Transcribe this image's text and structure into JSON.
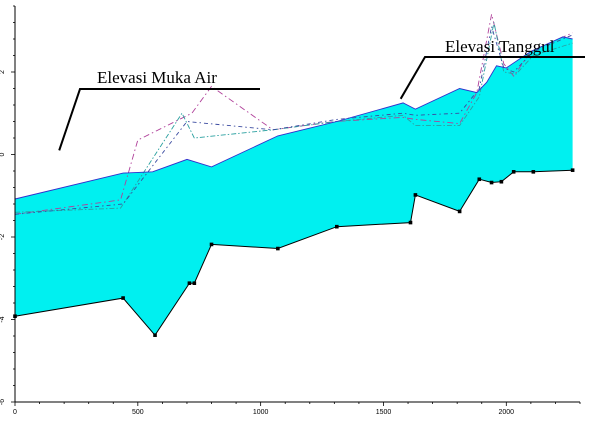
{
  "chart_data": {
    "type": "area",
    "title": "",
    "xlabel": "",
    "ylabel": "",
    "xlim": [
      0,
      2300
    ],
    "ylim": [
      -6,
      3.6
    ],
    "x_ticks": [
      0,
      500,
      1000,
      1500,
      2000
    ],
    "y_ticks": [
      -6,
      -4,
      -2,
      0,
      2
    ],
    "grid": false,
    "legend": "none",
    "colors": {
      "fill": "#00f0f0",
      "bed_line": "#000000",
      "embankment_line": "#3030cc",
      "dashdot_magenta": "#b0409a",
      "dashdot_teal": "#2aa0a0",
      "dashdot_navy": "#3a4aa0"
    },
    "series": [
      {
        "x": [
          0,
          440,
          570,
          710,
          730,
          800,
          1070,
          1310,
          1610,
          1630,
          1810,
          1890,
          1940,
          1980,
          2030,
          2110,
          2270
        ],
        "y": [
          -3.92,
          -3.48,
          -4.38,
          -3.12,
          -3.12,
          -2.18,
          -2.28,
          -1.75,
          -1.65,
          -0.98,
          -1.38,
          -0.6,
          -0.68,
          -0.66,
          -0.42,
          -0.42,
          -0.38
        ]
      },
      {
        "x": [
          0,
          440,
          560,
          700,
          800,
          1070,
          1310,
          1580,
          1630,
          1810,
          1880,
          1920,
          1960,
          2000,
          2100,
          2230,
          2270
        ],
        "y": [
          -1.08,
          -0.45,
          -0.42,
          -0.12,
          -0.3,
          0.45,
          0.8,
          1.25,
          1.1,
          1.6,
          1.5,
          1.75,
          2.15,
          2.1,
          2.5,
          2.85,
          2.8
        ]
      },
      {
        "x": [
          0,
          430,
          500,
          720,
          800,
          1050,
          1300,
          1580,
          1630,
          1810,
          1880,
          1940,
          1990,
          2030,
          2100,
          2270
        ],
        "y": [
          -1.45,
          -1.1,
          0.35,
          1.0,
          1.65,
          0.6,
          0.8,
          0.9,
          0.85,
          0.75,
          1.5,
          3.4,
          2.2,
          1.9,
          2.5,
          2.95
        ]
      },
      {
        "x": [
          0,
          430,
          680,
          730,
          1050,
          1310,
          1580,
          1630,
          1810,
          1890,
          1950,
          1990,
          2040,
          2110,
          2270
        ],
        "y": [
          -1.4,
          -1.3,
          1.0,
          0.4,
          0.6,
          0.8,
          0.95,
          0.7,
          0.7,
          1.4,
          3.2,
          2.0,
          1.95,
          2.4,
          2.7
        ]
      },
      {
        "x": [
          0,
          440,
          700,
          1050,
          1310,
          1580,
          1630,
          1810,
          1890,
          1940,
          1990,
          2030,
          2110,
          2270
        ],
        "y": [
          -1.45,
          -1.2,
          0.8,
          0.6,
          0.85,
          1.0,
          0.95,
          1.0,
          1.6,
          3.1,
          2.1,
          2.0,
          2.5,
          2.9
        ]
      }
    ],
    "annotations": [
      {
        "text": "Elevasi Muka Air",
        "target": [
          180,
          0.1
        ]
      },
      {
        "text": "Elevasi Tanggul",
        "target": [
          1570,
          1.35
        ]
      }
    ]
  }
}
